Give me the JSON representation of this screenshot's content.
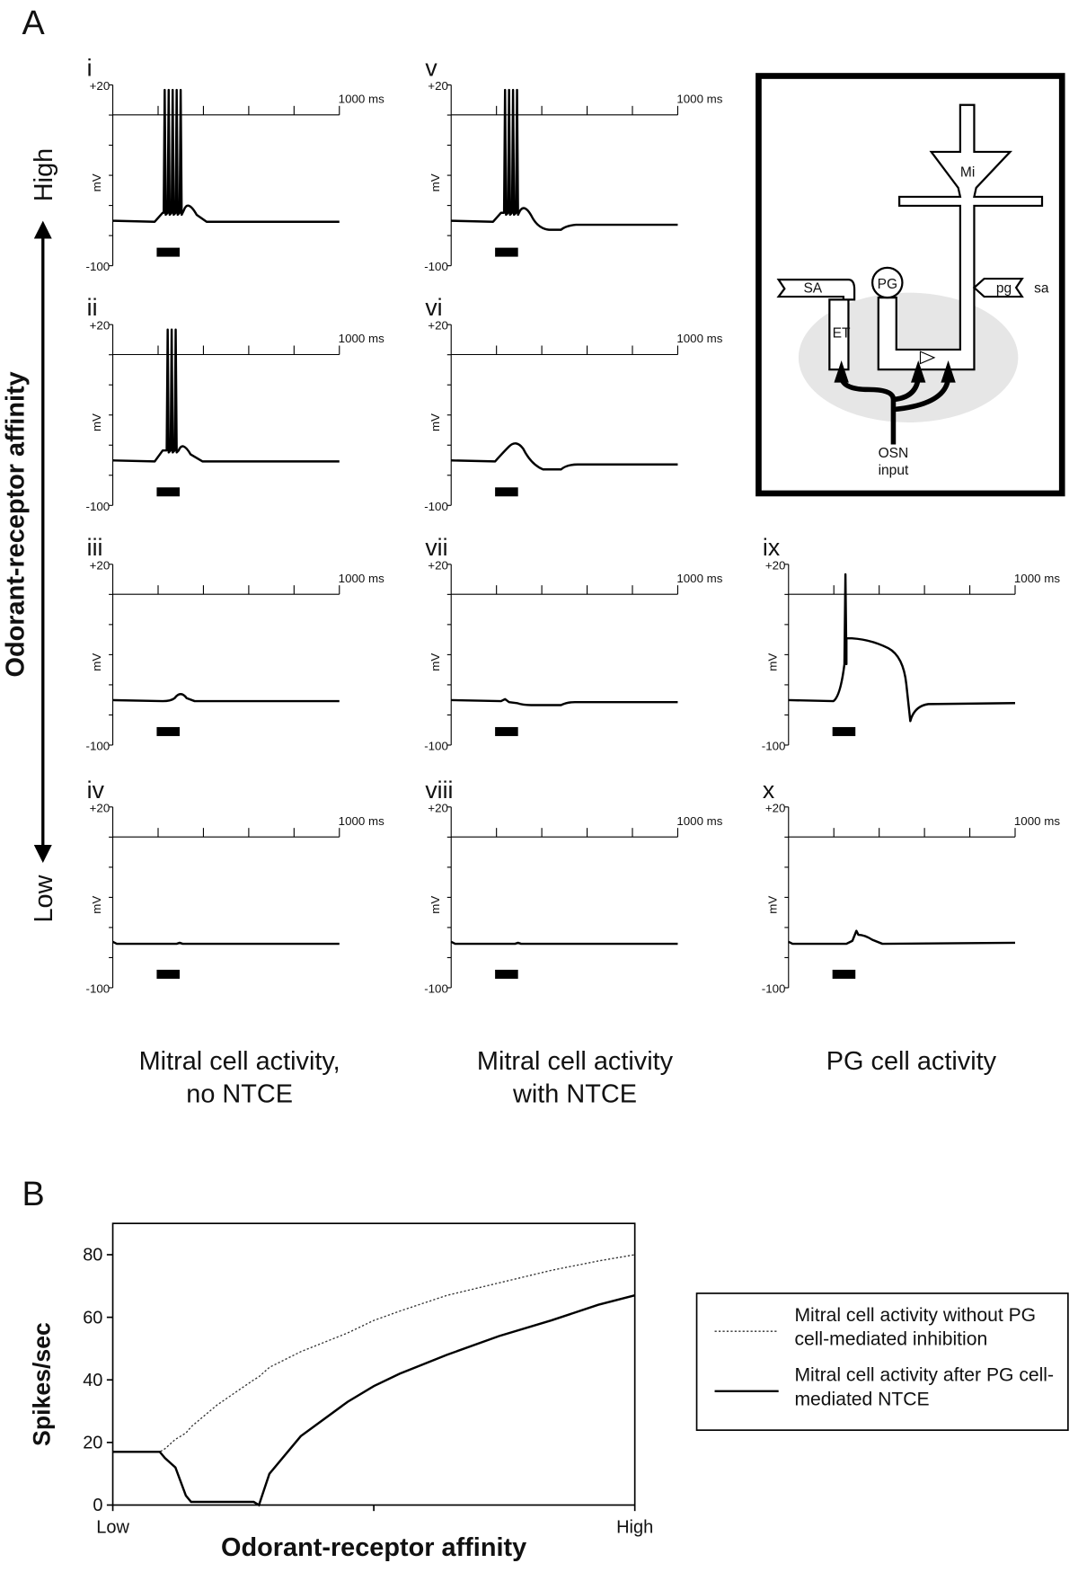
{
  "panel_a": {
    "label": "A",
    "axis_label": "Odorant-receptor affinity",
    "high": "High",
    "low": "Low",
    "trace_axes": {
      "ymax": "+20",
      "ymin": "-100",
      "time": "1000 ms",
      "unit": "mV"
    },
    "panels": [
      {
        "numeral": "i"
      },
      {
        "numeral": "ii"
      },
      {
        "numeral": "iii"
      },
      {
        "numeral": "iv"
      },
      {
        "numeral": "v"
      },
      {
        "numeral": "vi"
      },
      {
        "numeral": "vii"
      },
      {
        "numeral": "viii"
      },
      {
        "numeral": "ix"
      },
      {
        "numeral": "x"
      }
    ],
    "captions": [
      [
        "Mitral cell activity,",
        "no NTCE"
      ],
      [
        "Mitral cell activity",
        "with NTCE"
      ],
      [
        "PG cell activity"
      ]
    ],
    "diagram": {
      "mi": "Mi",
      "pg_cell": "PG",
      "sa_cell": "SA",
      "et": "ET",
      "pg_input": "pg",
      "sa_input": "sa",
      "osn": "OSN",
      "input": "input"
    }
  },
  "chart_data": {
    "type": "line",
    "panel_label": "B",
    "x_label": "Odorant-receptor affinity",
    "y_label": "Spikes/sec",
    "x": [
      0,
      0.09,
      0.1,
      0.12,
      0.14,
      0.15,
      0.2,
      0.27,
      0.28,
      0.3,
      0.36,
      0.45,
      0.5,
      0.55,
      0.64,
      0.74,
      0.84,
      0.93,
      1
    ],
    "xlim": [
      0,
      1
    ],
    "xticks": [
      {
        "value": 0,
        "label": "Low"
      },
      {
        "value": 0.5,
        "label": null
      },
      {
        "value": 1,
        "label": "High"
      }
    ],
    "ylim": [
      0,
      90
    ],
    "yticks": [
      0,
      20,
      40,
      60,
      80
    ],
    "grid": false,
    "legend": "right",
    "series": [
      {
        "name": "Mitral cell activity without PG cell-mediated inhibition",
        "color": "#333333",
        "style": "dotted",
        "values": [
          17,
          17,
          18,
          21,
          23,
          25,
          32,
          40,
          41,
          44,
          49,
          55,
          59,
          62,
          67,
          71,
          75,
          78,
          80
        ]
      },
      {
        "name": "Mitral cell activity after PG cell-mediated NTCE",
        "color": "#000000",
        "style": "solid",
        "values": [
          17,
          17,
          15,
          12,
          3,
          1,
          1,
          1,
          0,
          10,
          22,
          33,
          38,
          42,
          48,
          54,
          59,
          64,
          67
        ]
      }
    ]
  }
}
